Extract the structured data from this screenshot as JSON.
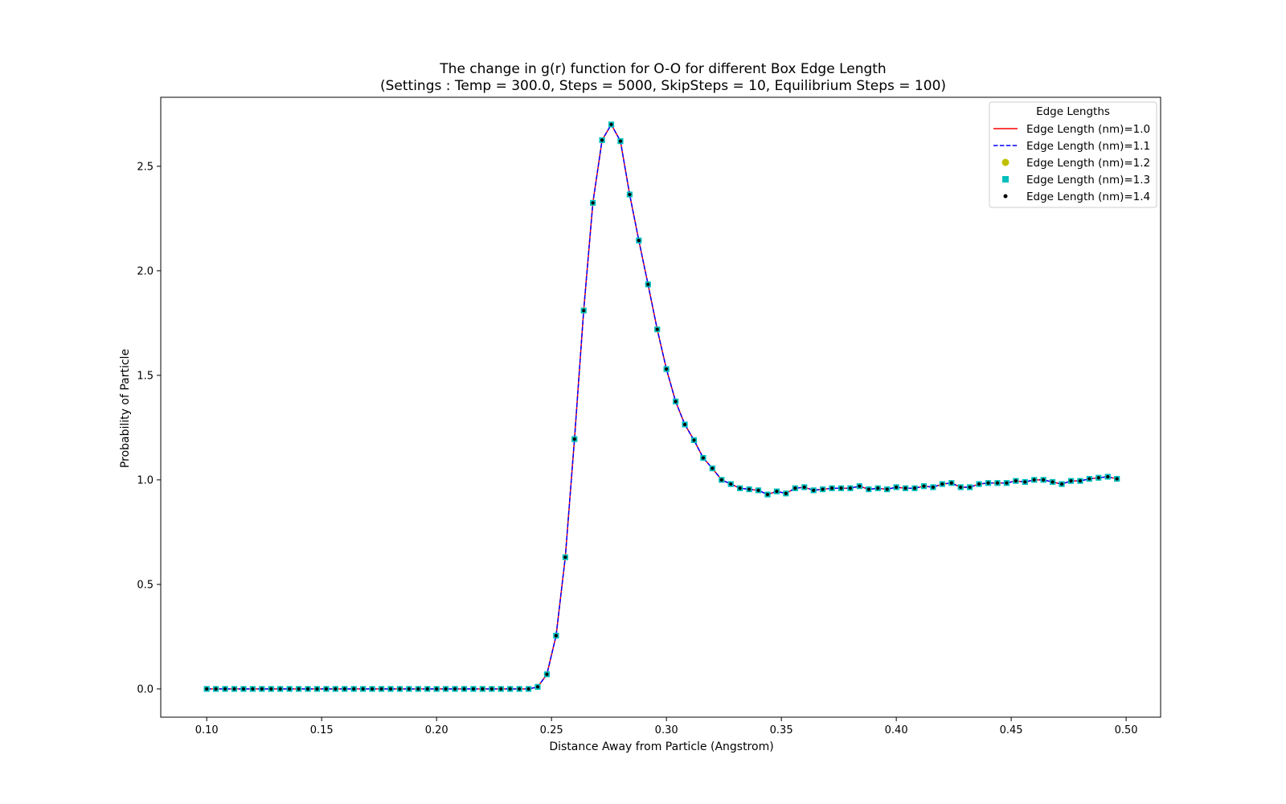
{
  "chart_data": {
    "type": "line",
    "title_line1": "The change in g(r) function for O-O for different Box Edge Length",
    "title_line2": "(Settings : Temp = 300.0, Steps = 5000, SkipSteps = 10, Equilibrium Steps = 100)",
    "xlabel": "Distance Away from Particle (Angstrom)",
    "ylabel": "Probability of Particle",
    "xlim": [
      0.08,
      0.515
    ],
    "ylim": [
      -0.135,
      2.83
    ],
    "xticks": [
      0.1,
      0.15,
      0.2,
      0.25,
      0.3,
      0.35,
      0.4,
      0.45,
      0.5
    ],
    "xtick_labels": [
      "0.10",
      "0.15",
      "0.20",
      "0.25",
      "0.30",
      "0.35",
      "0.40",
      "0.45",
      "0.50"
    ],
    "yticks": [
      0.0,
      0.5,
      1.0,
      1.5,
      2.0,
      2.5
    ],
    "ytick_labels": [
      "0.0",
      "0.5",
      "1.0",
      "1.5",
      "2.0",
      "2.5"
    ],
    "grid": false,
    "legend": {
      "title": "Edge Lengths",
      "placement": "top-right"
    },
    "x": [
      0.1,
      0.104,
      0.108,
      0.112,
      0.116,
      0.12,
      0.124,
      0.128,
      0.132,
      0.136,
      0.14,
      0.144,
      0.148,
      0.152,
      0.156,
      0.16,
      0.164,
      0.168,
      0.172,
      0.176,
      0.18,
      0.184,
      0.188,
      0.192,
      0.196,
      0.2,
      0.204,
      0.208,
      0.212,
      0.216,
      0.22,
      0.224,
      0.228,
      0.232,
      0.236,
      0.24,
      0.244,
      0.248,
      0.252,
      0.256,
      0.26,
      0.264,
      0.268,
      0.272,
      0.276,
      0.28,
      0.284,
      0.288,
      0.292,
      0.296,
      0.3,
      0.304,
      0.308,
      0.312,
      0.316,
      0.32,
      0.324,
      0.328,
      0.332,
      0.336,
      0.34,
      0.344,
      0.348,
      0.352,
      0.356,
      0.36,
      0.364,
      0.368,
      0.372,
      0.376,
      0.38,
      0.384,
      0.388,
      0.392,
      0.396,
      0.4,
      0.404,
      0.408,
      0.412,
      0.416,
      0.42,
      0.424,
      0.428,
      0.432,
      0.436,
      0.44,
      0.444,
      0.448,
      0.452,
      0.456,
      0.46,
      0.464,
      0.468,
      0.472,
      0.476,
      0.48,
      0.484,
      0.488,
      0.492,
      0.496
    ],
    "y": [
      0,
      0,
      0,
      0,
      0,
      0,
      0,
      0,
      0,
      0,
      0,
      0,
      0,
      0,
      0,
      0,
      0,
      0,
      0,
      0,
      0,
      0,
      0,
      0,
      0,
      0,
      0,
      0,
      0,
      0,
      0,
      0,
      0,
      0,
      0,
      0,
      0.01,
      0.07,
      0.255,
      0.63,
      1.195,
      1.81,
      2.325,
      2.625,
      2.7,
      2.62,
      2.365,
      2.145,
      1.935,
      1.72,
      1.53,
      1.375,
      1.265,
      1.19,
      1.105,
      1.055,
      1.0,
      0.98,
      0.96,
      0.955,
      0.95,
      0.93,
      0.945,
      0.935,
      0.96,
      0.965,
      0.95,
      0.955,
      0.96,
      0.96,
      0.96,
      0.97,
      0.955,
      0.96,
      0.955,
      0.965,
      0.96,
      0.96,
      0.97,
      0.965,
      0.98,
      0.985,
      0.965,
      0.965,
      0.98,
      0.985,
      0.985,
      0.985,
      0.995,
      0.99,
      1.0,
      1.0,
      0.99,
      0.98,
      0.995,
      0.995,
      1.005,
      1.01,
      1.015,
      1.005
    ],
    "series": [
      {
        "name": "Edge Length (nm)=1.0",
        "style": "line-solid",
        "color": "#ff0000"
      },
      {
        "name": "Edge Length (nm)=1.1",
        "style": "line-dashed",
        "color": "#0000ff"
      },
      {
        "name": "Edge Length (nm)=1.2",
        "style": "marker-circle",
        "color": "#bfbf00"
      },
      {
        "name": "Edge Length (nm)=1.3",
        "style": "marker-square",
        "color": "#00bfbf"
      },
      {
        "name": "Edge Length (nm)=1.4",
        "style": "marker-dot",
        "color": "#000000"
      }
    ]
  }
}
